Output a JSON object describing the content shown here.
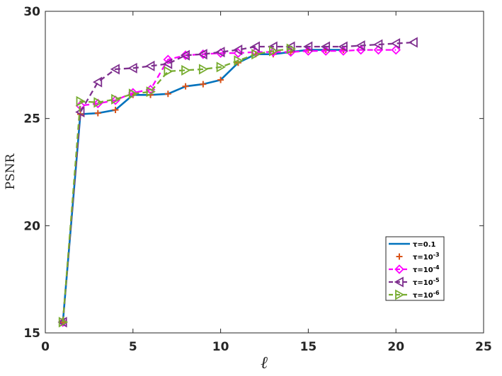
{
  "chart_data": {
    "type": "line",
    "xlabel": "ℓ",
    "ylabel": "PSNR",
    "xlim": [
      0,
      25
    ],
    "ylim": [
      15,
      30
    ],
    "xticks": [
      "0",
      "5",
      "10",
      "15",
      "20",
      "25"
    ],
    "yticks": [
      "15",
      "20",
      "25",
      "30"
    ],
    "grid": false,
    "legend_position": "bottom-right",
    "series": [
      {
        "name": "τ=0.1",
        "tau": "τ=",
        "tau_base": "0.1",
        "tau_exp": "",
        "color": "#0072BD",
        "line": "solid",
        "marker": "none",
        "x": [
          1,
          2,
          3,
          4,
          5,
          6,
          7,
          8,
          9,
          10,
          11,
          12,
          13,
          14,
          15,
          16,
          17
        ],
        "y": [
          15.5,
          25.2,
          25.25,
          25.4,
          26.1,
          26.1,
          26.15,
          26.5,
          26.6,
          26.8,
          27.6,
          28.0,
          28.0,
          28.1,
          28.2,
          28.2,
          28.2
        ]
      },
      {
        "name": "τ=10^-3",
        "tau": "τ=",
        "tau_base": "10",
        "tau_exp": "-3",
        "color": "#D95319",
        "line": "none",
        "marker": "plus",
        "x": [
          1,
          2,
          3,
          4,
          5,
          6,
          7,
          8,
          9,
          10,
          11,
          12,
          13,
          14,
          15,
          16,
          17
        ],
        "y": [
          15.5,
          25.2,
          25.25,
          25.4,
          26.1,
          26.1,
          26.15,
          26.5,
          26.6,
          26.8,
          27.6,
          28.0,
          28.0,
          28.1,
          28.2,
          28.2,
          28.2
        ]
      },
      {
        "name": "τ=10^-4",
        "tau": "τ=",
        "tau_base": "10",
        "tau_exp": "-4",
        "color": "#FF00FF",
        "line": "dashed",
        "marker": "diamond",
        "x": [
          1,
          2,
          3,
          4,
          5,
          6,
          7,
          8,
          9,
          10,
          11,
          12,
          13,
          14,
          15,
          16,
          17,
          18,
          19,
          20
        ],
        "y": [
          15.5,
          25.6,
          25.7,
          25.85,
          26.2,
          26.35,
          27.75,
          27.95,
          28.0,
          28.05,
          28.05,
          28.1,
          28.1,
          28.1,
          28.15,
          28.15,
          28.15,
          28.2,
          28.2,
          28.2
        ]
      },
      {
        "name": "τ=10^-5",
        "tau": "τ=",
        "tau_base": "10",
        "tau_exp": "-5",
        "color": "#7E2F8E",
        "line": "dashed",
        "marker": "triangle-left",
        "x": [
          1,
          2,
          3,
          4,
          5,
          6,
          7,
          8,
          9,
          10,
          11,
          12,
          13,
          14,
          15,
          16,
          17,
          18,
          19,
          20,
          21
        ],
        "y": [
          15.5,
          25.3,
          26.7,
          27.3,
          27.35,
          27.45,
          27.55,
          27.95,
          28.0,
          28.1,
          28.2,
          28.35,
          28.35,
          28.35,
          28.35,
          28.35,
          28.35,
          28.4,
          28.45,
          28.5,
          28.55
        ]
      },
      {
        "name": "τ=10^-6",
        "tau": "τ=",
        "tau_base": "10",
        "tau_exp": "-6",
        "color": "#77AC30",
        "line": "dashed",
        "marker": "triangle-right",
        "x": [
          1,
          2,
          3,
          4,
          5,
          6,
          7,
          8,
          9,
          10,
          11,
          12,
          13,
          14
        ],
        "y": [
          15.5,
          25.8,
          25.75,
          25.9,
          26.15,
          26.25,
          27.2,
          27.25,
          27.3,
          27.4,
          27.7,
          28.0,
          28.15,
          28.25
        ]
      }
    ]
  }
}
